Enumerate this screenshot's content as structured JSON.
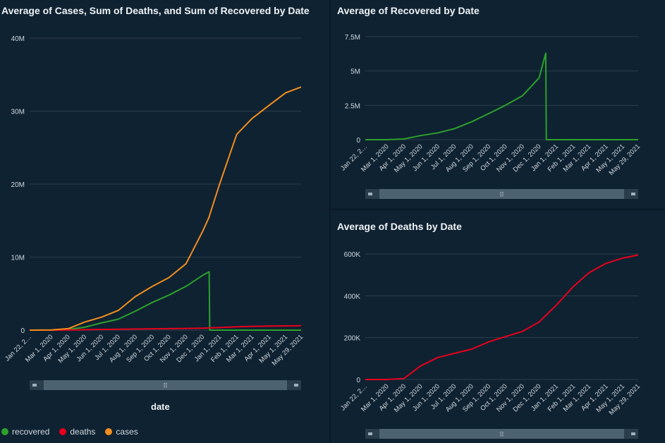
{
  "colors": {
    "background": "#0f2231",
    "grid": "#2c3f4e",
    "axis_text": "#cfd8df",
    "recovered": "#2ca02c",
    "deaths": "#e8001c",
    "cases": "#f28e1f"
  },
  "x_tick_labels": [
    "Jan 22, 2…",
    "Mar 1, 2020",
    "Apr 1, 2020",
    "May 1, 2020",
    "Jun 1, 2020",
    "Jul 1, 2020",
    "Aug 1, 2020",
    "Sep 1, 2020",
    "Oct 1, 2020",
    "Nov 1, 2020",
    "Dec 1, 2020",
    "Jan 1, 2021",
    "Feb 1, 2021",
    "Mar 1, 2021",
    "Apr 1, 2021",
    "May 1, 2021",
    "May 29, 2021"
  ],
  "legend": [
    {
      "name": "recovered",
      "color": "#2ca02c"
    },
    {
      "name": "deaths",
      "color": "#e8001c"
    },
    {
      "name": "cases",
      "color": "#f28e1f"
    }
  ],
  "scrollbar_grip": "⠿",
  "chart_data": [
    {
      "id": "main",
      "type": "line",
      "title": "Average of Cases, Sum of Deaths, and Sum of Recovered by Date",
      "xlabel": "date",
      "ylabel": "",
      "ylim": [
        0,
        40000000
      ],
      "y_ticks": [
        "0",
        "10M",
        "20M",
        "30M",
        "40M"
      ],
      "x": [
        "2020-01-22",
        "2020-03-01",
        "2020-04-01",
        "2020-05-01",
        "2020-06-01",
        "2020-07-01",
        "2020-08-01",
        "2020-09-01",
        "2020-10-01",
        "2020-11-01",
        "2020-12-01",
        "2020-12-13",
        "2020-12-14",
        "2021-01-01",
        "2021-02-01",
        "2021-03-01",
        "2021-04-01",
        "2021-05-01",
        "2021-05-29"
      ],
      "series": [
        {
          "name": "recovered",
          "values": [
            0,
            0,
            100000,
            400000,
            1000000,
            1500000,
            2600000,
            3800000,
            4800000,
            6000000,
            7500000,
            8000000,
            0,
            0,
            0,
            0,
            0,
            0,
            0
          ]
        },
        {
          "name": "deaths",
          "values": [
            0,
            0,
            5000,
            60000,
            100000,
            125000,
            155000,
            185000,
            205000,
            230000,
            275000,
            300000,
            305000,
            350000,
            450000,
            520000,
            560000,
            580000,
            595000
          ]
        },
        {
          "name": "cases",
          "values": [
            0,
            20000,
            200000,
            1100000,
            1800000,
            2700000,
            4600000,
            6000000,
            7200000,
            9100000,
            13500000,
            15500000,
            15800000,
            20000000,
            26800000,
            29000000,
            30800000,
            32500000,
            33300000
          ]
        }
      ],
      "legend_position": "bottom-left",
      "grid": true
    },
    {
      "id": "recovered",
      "type": "line",
      "title": "Average of Recovered by Date",
      "ylim": [
        0,
        7500000
      ],
      "y_ticks": [
        "0",
        "2.5M",
        "5M",
        "7.5M"
      ],
      "x": [
        "2020-01-22",
        "2020-03-01",
        "2020-04-01",
        "2020-05-01",
        "2020-06-01",
        "2020-07-01",
        "2020-08-01",
        "2020-09-01",
        "2020-10-01",
        "2020-11-01",
        "2020-12-01",
        "2020-12-13",
        "2020-12-14",
        "2021-01-01",
        "2021-02-01",
        "2021-03-01",
        "2021-04-01",
        "2021-05-01",
        "2021-05-29"
      ],
      "series": [
        {
          "name": "recovered",
          "values": [
            0,
            0,
            50000,
            300000,
            500000,
            800000,
            1300000,
            1900000,
            2500000,
            3200000,
            4500000,
            6300000,
            0,
            0,
            0,
            0,
            0,
            0,
            0
          ]
        }
      ],
      "grid": true
    },
    {
      "id": "deaths",
      "type": "line",
      "title": "Average of Deaths by Date",
      "ylim": [
        0,
        600000
      ],
      "y_ticks": [
        "0",
        "200K",
        "400K",
        "600K"
      ],
      "x": [
        "2020-01-22",
        "2020-03-01",
        "2020-04-01",
        "2020-05-01",
        "2020-06-01",
        "2020-07-01",
        "2020-08-01",
        "2020-09-01",
        "2020-10-01",
        "2020-11-01",
        "2020-12-01",
        "2021-01-01",
        "2021-02-01",
        "2021-03-01",
        "2021-04-01",
        "2021-05-01",
        "2021-05-29"
      ],
      "series": [
        {
          "name": "deaths",
          "values": [
            0,
            0,
            5000,
            65000,
            105000,
            125000,
            145000,
            180000,
            205000,
            230000,
            275000,
            355000,
            445000,
            510000,
            555000,
            580000,
            595000
          ]
        }
      ],
      "grid": true
    }
  ]
}
